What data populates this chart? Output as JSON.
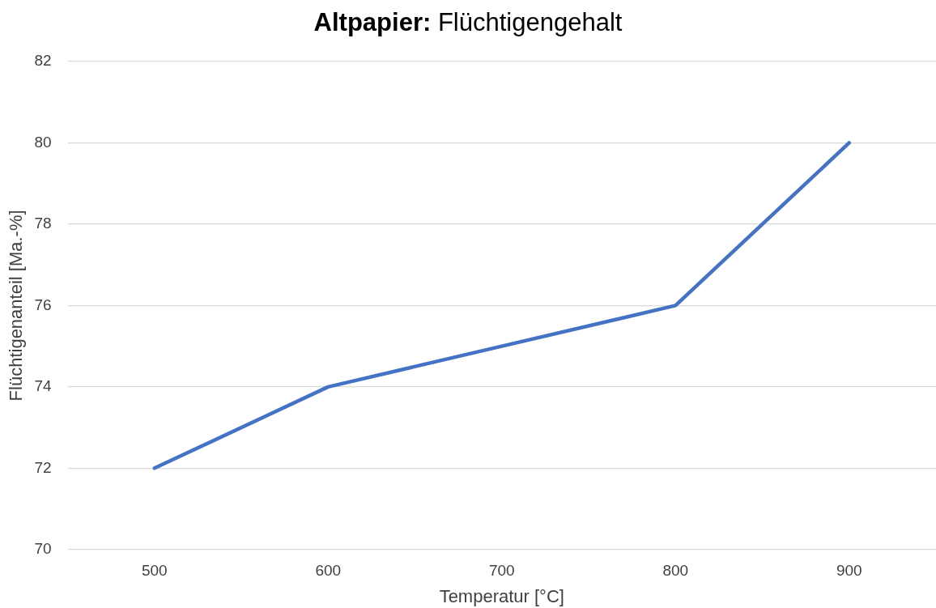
{
  "chart_data": {
    "type": "line",
    "title": "Altpapier: Flüchtigengehalt",
    "xlabel": "Temperatur [°C]",
    "ylabel": "Flüchtigenanteil [Ma.-%]",
    "categories": [
      "500",
      "600",
      "700",
      "800",
      "900"
    ],
    "series": [
      {
        "color": "#4472c4",
        "values": [
          72,
          74,
          75,
          76,
          80
        ]
      }
    ],
    "ylim": [
      70,
      82
    ],
    "yticks": [
      70,
      72,
      74,
      76,
      78,
      80,
      82
    ],
    "grid": "y",
    "marker": "none",
    "line_style": "solid"
  }
}
